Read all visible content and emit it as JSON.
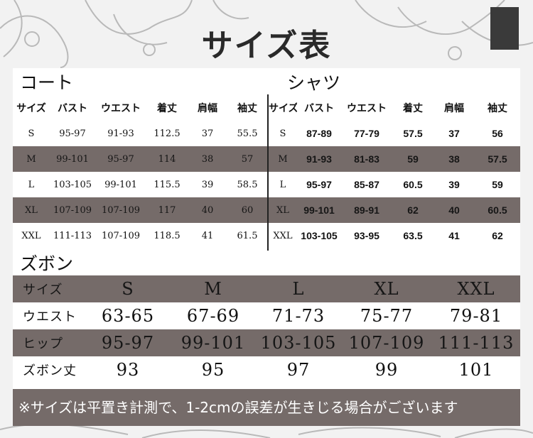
{
  "title": "サイズ表",
  "coat": {
    "label": "コート",
    "headers": [
      "サイズ",
      "バスト",
      "ウエスト",
      "着丈",
      "肩幅",
      "袖丈"
    ],
    "rows": [
      [
        "S",
        "95-97",
        "91-93",
        "112.5",
        "37",
        "55.5"
      ],
      [
        "M",
        "99-101",
        "95-97",
        "114",
        "38",
        "57"
      ],
      [
        "L",
        "103-105",
        "99-101",
        "115.5",
        "39",
        "58.5"
      ],
      [
        "XL",
        "107-109",
        "107-109",
        "117",
        "40",
        "60"
      ],
      [
        "XXL",
        "111-113",
        "107-109",
        "118.5",
        "41",
        "61.5"
      ]
    ]
  },
  "shirt": {
    "label": "シャツ",
    "headers": [
      "サイズ",
      "バスト",
      "ウエスト",
      "着丈",
      "肩幅",
      "袖丈"
    ],
    "rows": [
      [
        "S",
        "87-89",
        "77-79",
        "57.5",
        "37",
        "56"
      ],
      [
        "M",
        "91-93",
        "81-83",
        "59",
        "38",
        "57.5"
      ],
      [
        "L",
        "95-97",
        "85-87",
        "60.5",
        "39",
        "59"
      ],
      [
        "XL",
        "99-101",
        "89-91",
        "62",
        "40",
        "60.5"
      ],
      [
        "XXL",
        "103-105",
        "93-95",
        "63.5",
        "41",
        "62"
      ]
    ]
  },
  "pants": {
    "label": "ズボン",
    "rows": [
      [
        "サイズ",
        "S",
        "M",
        "L",
        "XL",
        "XXL"
      ],
      [
        "ウエスト",
        "63-65",
        "67-69",
        "71-73",
        "75-77",
        "79-81"
      ],
      [
        "ヒップ",
        "95-97",
        "99-101",
        "103-105",
        "107-109",
        "111-113"
      ],
      [
        "ズボン丈",
        "93",
        "95",
        "97",
        "99",
        "101"
      ]
    ]
  },
  "note": "※サイズは平置き計測で、1-2cmの誤差が生きじる場合がございます",
  "colors": {
    "gray_row": "#756b69",
    "background": "#f2f2f2"
  }
}
